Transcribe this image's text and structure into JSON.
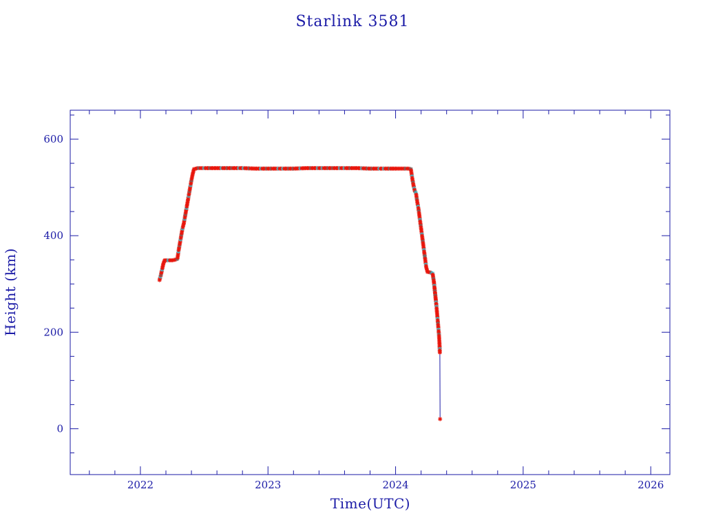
{
  "colors": {
    "axis": "#1a1aa6",
    "text": "#1a1aa6",
    "marker": "#e8160c",
    "marker_alt": "#2ad4e8",
    "marker_dark": "#6b6b6b",
    "line": "#1a1aa6"
  },
  "chart_data": {
    "type": "scatter",
    "title": "Starlink 3581",
    "xlabel": "Time(UTC)",
    "ylabel": "Height (km)",
    "xlim": [
      2021.45,
      2026.15
    ],
    "ylim": [
      -95,
      660
    ],
    "x_major_ticks": [
      2022,
      2023,
      2024,
      2025,
      2026
    ],
    "x_tick_labels": [
      "2022",
      "2023",
      "2024",
      "2025",
      "2026"
    ],
    "x_minor_step": 0.2,
    "y_major_ticks": [
      0,
      200,
      400,
      600
    ],
    "y_tick_labels": [
      "0",
      "200",
      "400",
      "600"
    ],
    "y_minor_step": 50,
    "grid": false,
    "legend": "none",
    "series": [
      {
        "marker": "asterisk",
        "points": [
          [
            2022.15,
            308
          ],
          [
            2022.16,
            318
          ],
          [
            2022.17,
            330
          ],
          [
            2022.18,
            342
          ],
          [
            2022.19,
            349
          ],
          [
            2022.21,
            349
          ],
          [
            2022.23,
            349
          ],
          [
            2022.25,
            349
          ],
          [
            2022.27,
            350
          ],
          [
            2022.29,
            352
          ],
          [
            2022.3,
            370
          ],
          [
            2022.31,
            385
          ],
          [
            2022.32,
            400
          ],
          [
            2022.33,
            415
          ],
          [
            2022.34,
            425
          ],
          [
            2022.35,
            440
          ],
          [
            2022.36,
            455
          ],
          [
            2022.37,
            470
          ],
          [
            2022.38,
            485
          ],
          [
            2022.39,
            500
          ],
          [
            2022.4,
            515
          ],
          [
            2022.41,
            528
          ],
          [
            2022.42,
            538
          ],
          [
            2022.45,
            540
          ],
          [
            2022.5,
            540
          ],
          [
            2022.6,
            540
          ],
          [
            2022.7,
            540
          ],
          [
            2022.8,
            540
          ],
          [
            2022.9,
            539
          ],
          [
            2023.0,
            539
          ],
          [
            2023.1,
            539
          ],
          [
            2023.2,
            539
          ],
          [
            2023.3,
            540
          ],
          [
            2023.4,
            540
          ],
          [
            2023.5,
            540
          ],
          [
            2023.6,
            540
          ],
          [
            2023.7,
            540
          ],
          [
            2023.8,
            539
          ],
          [
            2023.9,
            539
          ],
          [
            2024.0,
            539
          ],
          [
            2024.05,
            539
          ],
          [
            2024.1,
            539
          ],
          [
            2024.12,
            538
          ],
          [
            2024.13,
            520
          ],
          [
            2024.14,
            505
          ],
          [
            2024.15,
            493
          ],
          [
            2024.16,
            488
          ],
          [
            2024.17,
            470
          ],
          [
            2024.18,
            455
          ],
          [
            2024.19,
            435
          ],
          [
            2024.2,
            415
          ],
          [
            2024.21,
            395
          ],
          [
            2024.22,
            375
          ],
          [
            2024.23,
            355
          ],
          [
            2024.24,
            335
          ],
          [
            2024.25,
            325
          ],
          [
            2024.27,
            324
          ],
          [
            2024.29,
            322
          ],
          [
            2024.3,
            305
          ],
          [
            2024.31,
            280
          ],
          [
            2024.32,
            255
          ],
          [
            2024.325,
            240
          ],
          [
            2024.33,
            225
          ],
          [
            2024.335,
            210
          ],
          [
            2024.34,
            195
          ],
          [
            2024.343,
            182
          ],
          [
            2024.345,
            172
          ],
          [
            2024.347,
            158
          ],
          [
            2024.349,
            20
          ]
        ]
      }
    ]
  }
}
